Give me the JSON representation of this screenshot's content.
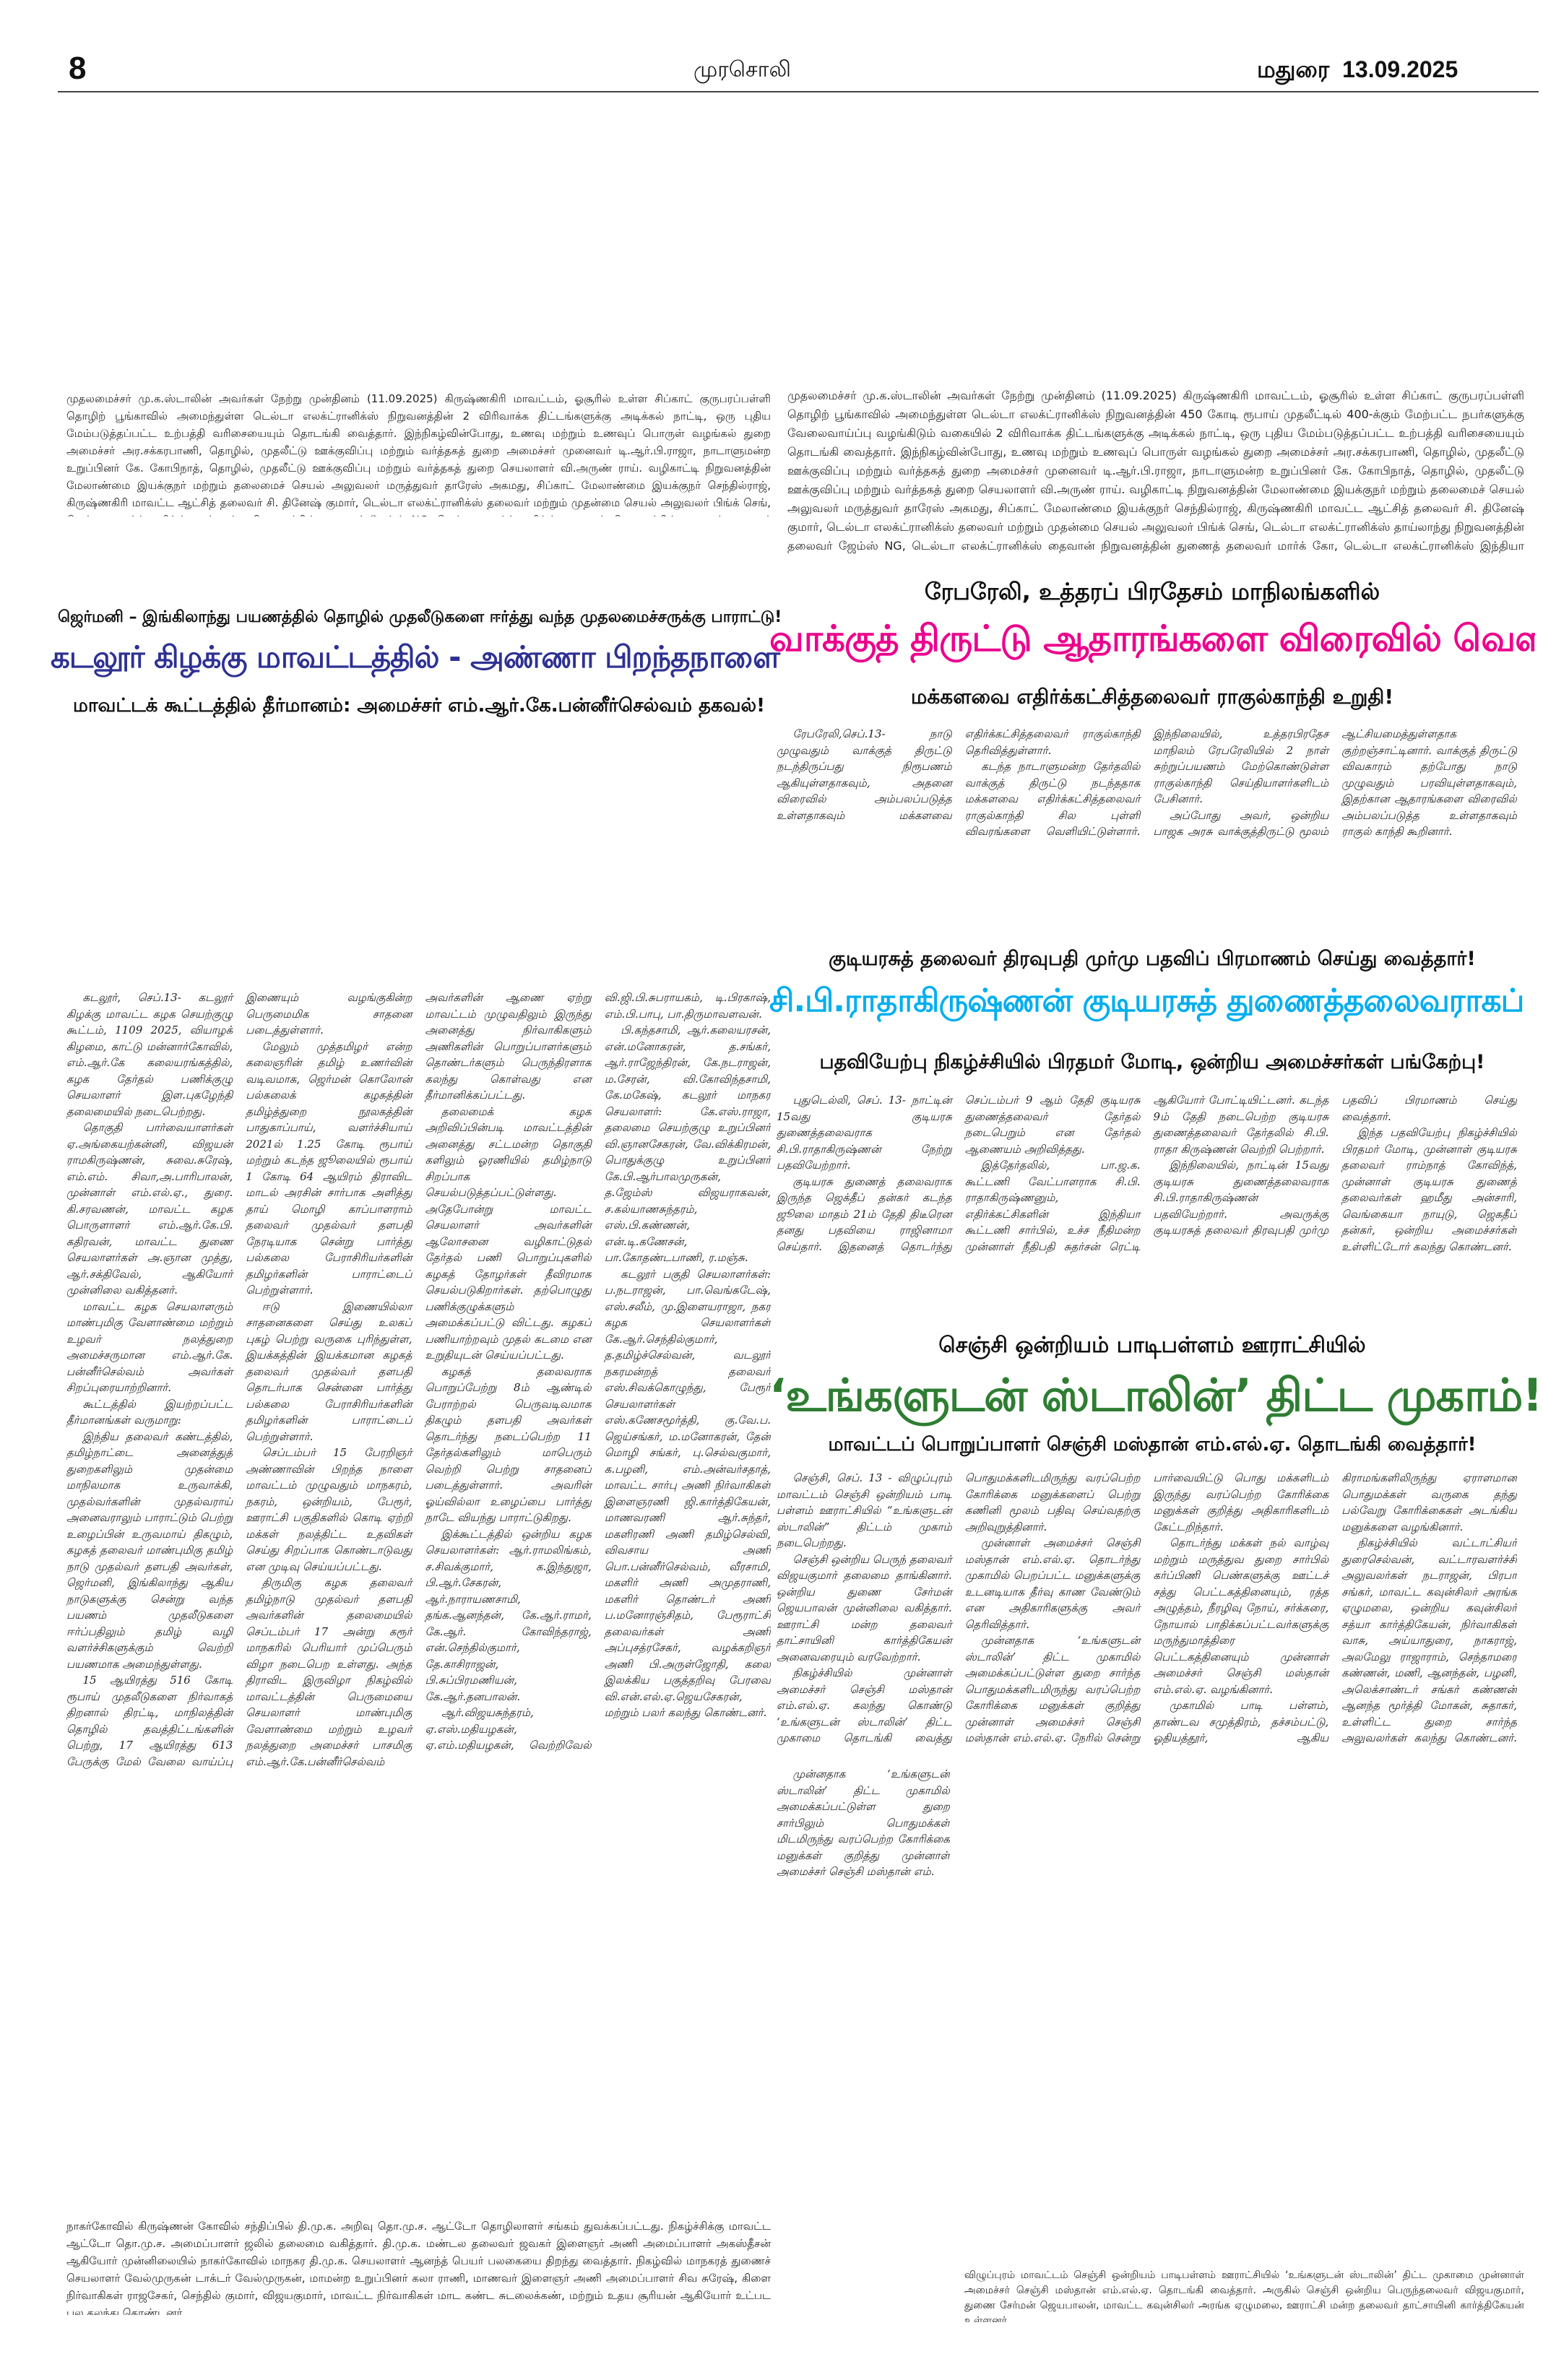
{
  "header": {
    "page_number": "8",
    "masthead": "முரசொலி",
    "edition": "மதுரை",
    "date": "13.09.2025"
  },
  "colors": {
    "left_headline": "#2e3192",
    "rahul_headline": "#ec008c",
    "vp_headline": "#00aeef",
    "senji_headline": "#2e7d32"
  },
  "left_top_caption": "முதலமைச்சர் மு.க.ஸ்டாலின் அவர்கள் நேற்று முன்தினம் (11.09.2025) கிருஷ்ணகிரி மாவட்டம், ஓசூரில் உள்ள சிப்காட் குருபரப்பள்ளி தொழிற் பூங்காவில் அமைந்துள்ள டெல்டா எலக்ட்ரானிக்ஸ் நிறுவனத்தின் 2 விரிவாக்க திட்டங்களுக்கு அடிக்கல் நாட்டி, ஒரு புதிய மேம்படுத்தப்பட்ட உற்பத்தி வரிசையையும் தொடங்கி வைத்தார். இந்நிகழ்வின்போது, உணவு மற்றும் உணவுப் பொருள் வழங்கல் துறை அமைச்சர் அர.சக்கரபாணி, தொழில், முதலீட்டு ஊக்குவிப்பு மற்றும் வர்த்தகத் துறை அமைச்சர் முனைவர் டி.ஆர்.பி.ராஜா, நாடாளுமன்ற உறுப்பினர் கே. கோபிநாத், தொழில், முதலீட்டு ஊக்குவிப்பு மற்றும் வர்த்தகத் துறை செயலாளர் வி.அருண் ராய். வழிகாட்டி நிறுவனத்தின் மேலாண்மை இயக்குநர் மற்றும் தலைமைச் செயல் அலுவலர் மருத்துவர் தாரேஸ் அகமது, சிப்காட் மேலாண்மை இயக்குநர் செந்தில்ராஜ், கிருஷ்ணகிரி மாவட்ட ஆட்சித் தலைவர் சி. தினேஷ் குமார், டெல்டா எலக்ட்ரானிக்ஸ் தலைவர் மற்றும் முதன்மை செயல் அலுவலர் பிங்க் செங், டெல்டா எலக்ட்ரானிக்ஸ் தாய்லாந்து நிறுவனத்தின் தலைவர் ஜேம்ஸ் NG, டெல்டா எலக்ட்ரானிக்ஸ் தைவான் நிறுவனத்தின் துணைத் தலைவர் மார்க் கோ, டெல்டா எலக்ட்ரானிக்ஸ் இந்தியா நிறுவனத்தின் தலைவர் பெஞ்ஜமின் லின் மற்றும் அரசு உயர் அலுவலர்கள் உடனிருந்தனர்.",
  "right_top_caption": "முதலமைச்சர் மு.க.ஸ்டாலின் அவர்கள் நேற்று முன்தினம் (11.09.2025) கிருஷ்ணகிரி மாவட்டம், ஓசூரில் உள்ள சிப்காட் குருபரப்பள்ளி தொழிற் பூங்காவில் அமைந்துள்ள டெல்டா எலக்ட்ரானிக்ஸ் நிறுவனத்தின் 450 கோடி ரூபாய் முதலீட்டில் 400-க்கும் மேற்பட்ட நபர்களுக்கு வேலைவாய்ப்பு வழங்கிடும் வகையில் 2 விரிவாக்க திட்டங்களுக்கு அடிக்கல் நாட்டி, ஒரு புதிய மேம்படுத்தப்பட்ட உற்பத்தி வரிசையையும் தொடங்கி வைத்தார். இந்நிகழ்வின்போது, உணவு மற்றும் உணவுப் பொருள் வழங்கல் துறை அமைச்சர் அர.சக்கரபாணி, தொழில், முதலீட்டு ஊக்குவிப்பு மற்றும் வர்த்தகத் துறை அமைச்சர் முனைவர் டி.ஆர்.பி.ராஜா, நாடாளுமன்ற உறுப்பினர் கே. கோபிநாத், தொழில், முதலீட்டு ஊக்குவிப்பு மற்றும் வர்த்தகத் துறை செயலாளர் வி.அருண் ராய். வழிகாட்டி நிறுவனத்தின் மேலாண்மை இயக்குநர் மற்றும் தலைமைச் செயல் அலுவலர் மருத்துவர் தாரேஸ் அகமது, சிப்காட் மேலாண்மை இயக்குநர் செந்தில்ராஜ், கிருஷ்ணகிரி மாவட்ட ஆட்சித் தலைவர் சி. தினேஷ் குமார், டெல்டா எலக்ட்ரானிக்ஸ் தலைவர் மற்றும் முதன்மை செயல் அலுவலர் பிங்க் செங், டெல்டா எலக்ட்ரானிக்ஸ் தாய்லாந்து நிறுவனத்தின் தலைவர் ஜேம்ஸ் NG, டெல்டா எலக்ட்ரானிக்ஸ் தைவான் நிறுவனத்தின் துணைத் தலைவர் மார்க் கோ, டெல்டா எலக்ட்ரானிக்ஸ் இந்தியா நிறுவனத்தின் தலைவர் பெஞ்ஜமின் லின் மற்றும் அரசு உயர் அலுவலர்கள் உடனிருந்தனர்.",
  "cuddalore": {
    "kicker": "ஜெர்மனி – இங்கிலாந்து பயணத்தில் தொழில் முதலீடுகளை ஈர்த்து வந்த முதலமைச்சருக்கு பாராட்டு!",
    "headline": "கடலூர் கிழக்கு மாவட்டத்தில் - அண்ணா பிறந்தநாளை சிறப்பாகக் கொண்டாடுவோம்!",
    "subhead": "மாவட்டக் கூட்டத்தில் தீர்மானம்: அமைச்சர் எம்.ஆர்.கே.பன்னீர்செல்வம் தகவல்!",
    "paragraphs": [
      "கடலூர், செப்.13- கடலூர் கிழக்கு மாவட்ட கழக செயற்குழு கூட்டம், 1109 2025, வியாழக் கிழமை, காட்டு மன்னார்கோவில், எம்.ஆர்.கே கலையரங்கத்தில், கழக தேர்தல் பணிக்குழு செயலாளர் இள.புகழேந்தி தலைமையில் நடைபெற்றது.",
      "தொகுதி பார்வையாளர்கள் ஏ.அங்கையற்கன்னி, விஜயன் ராமகிருஷ்ணன், சுவை.சுரேஷ், எம்.எம். சிவா,அ.பாரிபாலன், முன்னாள் எம்.எல்.ஏ., துரை. கி.சரவணன், மாவட்ட கழக பொருளாளர் எம்.ஆர்.கே.பி. கதிரவன், மாவட்ட துணை செயலாளர்கள் அ.ஞான முத்து, ஆர்.சக்திவேல், ஆகியோர் முன்னிலை வகித்தனர்.",
      "மாவட்ட கழக செயலாளரும் மாண்புமிகு வேளாண்மை மற்றும் உழவர் நலத்துறை அமைச்சருமான எம்.ஆர்.கே. பன்னீர்செல்வம் அவர்கள் சிறப்புரையாற்றினார்.",
      "கூட்டத்தில் இயற்றப்பட்ட தீர்மானங்கள் வருமாறு:",
      "இந்திய தலைவர் கண்டத்தில், தமிழ்நாட்டை அனைத்துத் துறைகளிலும் முதன்மை மாநிலமாக உருவாக்கி, முதல்வர்களின் முதல்வராய் அனைவராலும் பாராட்டும் பெற்று உழைப்பின் உருவமாய் திகழும், கழகத் தலைவர் மாண்புமிகு தமிழ் நாடு முதல்வர் தளபதி அவர்கள், ஜெர்மனி, இங்கிலாந்து ஆகிய நாடுகளுக்கு சென்று வந்த பயணம் முதலீடுகளை ஈர்ப்பதிலும் தமிழ் வழி வளர்ச்சிகளுக்கும் வெற்றி பயணமாக அமைந்துள்ளது.",
      "15 ஆயிரத்து 516 கோடி ரூபாய் முதலீடுகளை நிர்வாகத் திறனால் திரட்டி, மாநிலத்தின் தொழில் தவத்திட்டங்களின் பெற்று, 17 ஆயிரத்து 613 பேருக்கு மேல் வேலை வாய்ப்பு இணையும் வழங்குகின்ற பெருமைமிக சாதனை படைத்துள்ளார்.",
      "மேலும் முத்தமிழர் என்ற கலைஞரின் தமிழ் உணர்வின் வடிவமாக, ஜெர்மன் கொலோன் பல்கலைக் கழகத்தின் தமிழ்த்துறை நூலகத்தின் பாதுகாப்பாய், வளர்ச்சியாய் 2021ல் 1.25 கோடி ரூபாய் மற்றும் கடந்த ஜூலையில் ரூபாய் 1 கோடி 64 ஆயிரம் திராவிட மாடல் அரசின் சார்பாக அளித்து தாய் மொழி காப்பாளராம் தலைவர் முதல்வர் தளபதி நேரடியாக சென்று பார்த்து பல்கலை பேராசிரியர்களின் தமிழர்களின் பாராட்டைப் பெற்றுள்ளார்.",
      "ஈடு இணையில்லா சாதனைகளை செய்து உலகப் புகழ் பெற்று வருகை புரிந்துள்ள, இயக்கத்தின் இயக்கமான கழகத் தலைவர் முதல்வர் தளபதி தொடர்பாக சென்னை பார்த்து பல்கலை பேராசிரியர்களின் தமிழர்களின் பாராட்டைப் பெற்றுள்ளார்.",
      "செப்டம்பர் 15 பேரறிஞர் அண்ணாவின் பிறந்த நாளை மாவட்டம் முழுவதும் மாநகரம், நகரம், ஒன்றியம், பேரூர், ஊராட்சி பகுதிகளில் கொடி ஏற்றி மக்கள் நலத்திட்ட உதவிகள் செய்து சிறப்பாக கொண்டாடுவது என முடிவு செய்யப்பட்டது.",
      "திருமிகு கழக தலைவர் தமிழ்நாடு முதல்வர் தளபதி அவர்களின் தலைமையில் செப்டம்பர் 17 அன்று கரூர் மாநகரில் பெரியார் முப்பெரும் விழா நடைபெற உள்ளது. அந்த திராவிட இருவிழா நிகழ்வில் மாவட்டத்தின் பெருமையை செயலாளர் மாண்புமிகு வேளாண்மை மற்றும் உழவர் நலத்துறை அமைச்சர் பாசமிகு எம்.ஆர்.கே.பன்னீர்செல்வம் அவர்களின் ஆணை ஏற்று மாவட்டம் முழுவதிலும் இருந்து அனைத்து நிர்வாகிகளும் அணிகளின் பொறுப்பாளர்களும் தொண்டர்களும் பெருந்திரளாக கலந்து கொள்வது என தீர்மானிக்கப்பட்டது.",
      "தலைமைக் கழக அறிவிப்பின்படி மாவட்டத்தின் அனைத்து சட்டமன்ற தொகுதி களிலும் ஓரணியில் தமிழ்நாடு சிறப்பாக செயல்படுத்தப்பட்டுள்ளது. அதேபோன்று மாவட்ட செயலாளர் அவர்களின் ஆலோசனை வழிகாட்டுதல் தேர்தல் பணி பொறுப்புகளில் கழகத் தோழர்கள் தீவிரமாக செயல்படுகிறார்கள். தற்பொழுது பணிக்குழுக்களும் அமைக்கப்பட்டு விட்டது. கழகப் பணியாற்றவும் முதல் கடமை என உறுதியுடன் செய்யப்பட்டது.",
      "கழகத் தலைவராக பொறுப்பேற்று 8ம் ஆண்டில் பேராற்றல் பெருவடிவமாக திகழும் தளபதி அவர்கள் தொடர்ந்து நடைப்பெற்ற 11 தேர்தல்களிலும் மாபெரும் வெற்றி பெற்று சாதனைப் படைத்துள்ளார். அவரின் ஓய்வில்லா உழைப்பை பார்த்து நாடே வியந்து பாராட்டுகிறது.",
      "இக்கூட்டத்தில் ஒன்றிய கழக செயலாளர்கள்: ஆர்.ராமலிங்கம், ச.சிவக்குமார், க.இந்துஜா, பி.ஆர்.சேகரன், ஆர்.நாராயணசாமி, தங்க.ஆனந்தன், கே.ஆர்.ராமர், கே.ஆர். கோவிந்தராஜ், என்.செந்தில்குமார், தே.காசிராஜன், பி.சுப்பிரமணியன், கே.ஆர்.தனபாலன்.",
      "ஆர்.விஜயசுந்தரம், ஏ.எஸ்.மதியழகன், ஏ.எம்.மதியழகன், வெற்றிவேல் வி.ஜி.பி.சுபராயகம், டி.பிரகாஷ், எம்.பி.பாபு, பா.திருமாவளவன்.",
      "பி.கந்தசாமி, ஆர்.கலையரசன், என்.மனோகரன், த.சங்கர், ஆர்.ராஜேந்திரன், கே.நடராஜன், ம.சேரன், வி.கோவிந்தசாமி, கே.மகேஷ், கடலூர் மாநகர செயலாளர்: கே.எஸ்.ராஜா, தலைமை செயற்குழு உறுப்பினர் வி.ஞானசேகரன், வே.விக்கிரமன், பொதுக்குழு உறுப்பினர் கே.பி.ஆர்பாலமுருகன், த.ஜேம்ஸ் விஜயராகவன், ச.கல்யாணசுந்தரம், எஸ்.பி.கண்ணன், என்.டி.கணேசன், பா.கோதண்டபாணி, ர.மஞ்சு.",
      "கடலூர் பகுதி செயலாளர்கள்: ப.நடராஜன், பா.வெங்கடேஷ், எஸ்.சலீம், மு.இளையராஜா, நகர கழக செயலாளர்கள் கே.ஆர்.செந்தில்குமார், த.தமிழ்ச்செல்வன், வடலூர் நகரமன்றத் தலைவர் எஸ்.சிவக்கொழுந்து, பேரூர் செயலாளர்கள் எஸ்.கணேசமூர்த்தி, கு.வே.ப. ஜெய்சங்கர், ம.மனோகரன், தேன் மொழி சங்கர், பு.செல்வகுமார், க.பழனி, எம்.அன்வர்சதாத், மாவட்ட சார்பு அணி நிர்வாகிகள் இளைஞரணி ஜி.கார்த்திகேயன், மாணவரணி ஆர்.சுந்தர், மகளிரணி அணி தமிழ்செல்வி, விவசாய அணி பொ.பன்னீர்செல்வம், வீரசாமி, மகளிர் அணி அமுதராணி, மகளிர் தொண்டர் அணி ப.மனோரஞ்சிதம், பேரூராட்சி தலைவர்கள் அணி அப்புசத்ரசேகர், வழக்கறிஞர் அணி பி.அருள்ஜோதி, கலை இலக்கிய பகுத்தறிவு பேரவை வி.என்.எல்.ஏ.ஜெயசேகரன், மற்றும் பலர் கலந்து கொண்டனர்."
    ]
  },
  "left_bottom_caption": "நாகர்கோவில் கிருஷ்ணன் கோவில் சந்திப்பில் தி.மு.க. அறிவு தொ.மு.ச. ஆட்டோ தொழிலாளர் சங்கம் துவக்கப்பட்டது. நிகழ்ச்சிக்கு மாவட்ட ஆட்டோ தொ.மு.ச. அமைப்பாளர் ஜலில் தலைமை வகித்தார். தி.மு.க. மண்டல தலைவர் ஜவகர் இளைஞர் அணி அமைப்பாளர் அகஸ்தீசன் ஆகியோர் முன்னிலையில் நாகர்கோவில் மாநகர தி.மு.க. செயலாளர் ஆனந்த் பெயர் பலகையை திறந்து வைத்தார். நிகழ்வில் மாநகரத் துணைச் செயலாளர் வேல்முருகன் டாக்டர் வேல்முருகன், மாமன்ற உறுப்பினர் கலா ராணி, மாணவர் இளைஞர் அணி அமைப்பாளர் சிவ சுரேஷ், கிளை நிர்வாகிகள் ராஜசேகர், செந்தில் குமார், விஜயகுமார், மாவட்ட நிர்வாகிகள் மாட கண்ட சுடலைக்கண், மற்றும் உதய சூரியன் ஆகியோர் உட்பட பல கலந்து கொண்டனர்.",
  "rahul": {
    "kicker": "ரேபரேலி, உத்தரப் பிரதேசம் மாநிலங்களில்",
    "headline": "வாக்குத் திருட்டு ஆதாரங்களை விரைவில் வெளியிடுவோம்!",
    "subhead": "மக்களவை எதிர்க்கட்சித்தலைவர் ராகுல்காந்தி உறுதி!",
    "paragraphs": [
      "ரேபரேலி,செப்.13- நாடு முழுவதும் வாக்குத் திருட்டு நடந்திருப்பது நிரூபணம் ஆகியுள்ளதாகவும், அதனை விரைவில் அம்பலப்படுத்த உள்ளதாகவும் மக்களவை எதிர்க்கட்சித்தலைவர் ராகுல்காந்தி தெரிவித்துள்ளார்.",
      "கடந்த நாடாளுமன்ற தேர்தலில் வாக்குத் திருட்டு நடந்ததாக மக்களவை எதிர்க்கட்சித்தலைவர் ராகுல்காந்தி சில புள்ளி விவரங்களை வெளியிட்டுள்ளார். இந்நிலையில், உத்தரபிரதேச மாநிலம் ரேபரேலியில் 2 நாள் சுற்றுப்பயணம் மேற்கொண்டுள்ள ராகுல்காந்தி செய்தியாளர்களிடம் பேசினார்.",
      "அப்போது அவர், ஒன்றிய பாஜக அரசு வாக்குத்திருட்டு மூலம் ஆட்சியமைத்துள்ளதாக குற்றஞ்சாட்டினார். வாக்குத் திருட்டு விவகாரம் தற்போது நாடு முழுவதும் பரவியுள்ளதாகவும், இதற்கான ஆதாரங்களை விரைவில் அம்பலப்படுத்த உள்ளதாகவும் ராகுல் காந்தி கூறினார்."
    ]
  },
  "vp": {
    "kicker": "குடியரசுத் தலைவர் திரவுபதி முர்மு பதவிப் பிரமாணம் செய்து வைத்தார்!",
    "headline": "சி.பி.ராதாகிருஷ்ணன் குடியரசுத் துணைத்தலைவராகப் பதவியேற்றார்!",
    "subhead": "பதவியேற்பு நிகழ்ச்சியில் பிரதமர் மோடி, ஒன்றிய அமைச்சர்கள் பங்கேற்பு!",
    "paragraphs": [
      "புதுடெல்லி, செப். 13- நாட்டின் 15வது குடியரசு துணைத்தலைவராக சி.பி.ராதாகிருஷ்ணன் நேற்று பதவியேற்றார்.",
      "குடியரசு துணைத் தலைவராக இருந்த ஜெக்தீப் தன்கர் கடந்த ஜூலை மாதம் 21ம் தேதி திடீரென தனது பதவியை ராஜினாமா செய்தார். இதனைத் தொடர்ந்து செப்டம்பர் 9 ஆம் தேதி குடியரசு துணைத்தலைவர் தேர்தல் நடைபெறும் என தேர்தல் ஆணையம் அறிவித்தது.",
      "இத்தேர்தலில், பா.ஜ.க. கூட்டணி வேட்பாளராக சி.பி. ராதாகிருஷ்ணனும், எதிர்க்கட்சிகளின் இந்தியா கூட்டணி சார்பில், உச்ச நீதிமன்ற முன்னாள் நீதிபதி சுதர்சன் ரெட்டி ஆகியோர் போட்டியிட்டனர். கடந்த 9ம் தேதி நடைபெற்ற குடியரசு துணைத்தலைவர் தேர்தலில் சி.பி. ராதா கிருஷ்ணன் வெற்றி பெற்றார்.",
      "இந்நிலையில், நாட்டின் 15வது குடியரசு துணைத்தலைவராக சி.பி.ராதாகிருஷ்ணன் பதவியேற்றார். அவருக்கு குடியரசுத் தலைவர் திரவுபதி முர்மு பதவிப் பிரமாணம் செய்து வைத்தார்.",
      "இந்த பதவியேற்பு நிகழ்ச்சியில் பிரதமர் மோடி, முன்னாள் குடியரசு தலைவர் ராம்நாத் கோவிந்த், முன்னாள் குடியரசு துணைத் தலைவர்கள் ஹமீது அன்சாரி, வெங்கையா நாயுடு, ஜெகதீப் தன்கர், ஒன்றிய அமைச்சர்கள் உள்ளிட்டோர் கலந்து கொண்டனர்."
    ]
  },
  "senji": {
    "kicker": "செஞ்சி ஒன்றியம் பாடிபள்ளம் ஊராட்சியில்",
    "headline": "‘உங்களுடன் ஸ்டாலின்’ திட்ட முகாம்!",
    "subhead": "மாவட்டப் பொறுப்பாளர் செஞ்சி மஸ்தான் எம்.எல்.ஏ. தொடங்கி வைத்தார்!",
    "paragraphs": [
      "செஞ்சி, செப். 13 - விழுப்புரம் மாவட்டம் செஞ்சி ஒன்றியம் பாடி பள்ளம் ஊராட்சியில் “உங்களுடன் ஸ்டாலின்” திட்டம் முகாம் நடைபெற்றது.",
      "செஞ்சி ஒன்றிய பெருந் தலைவர் விஜயகுமார் தலைமை தாங்கினார். ஒன்றிய துணை சேர்மன் ஜெயபாலன் முன்னிலை வகித்தார். ஊராட்சி மன்ற தலைவர் தாட்சாயினி கார்த்திகேயன் அனைவரையும் வரவேற்றார்.",
      "நிகழ்ச்சியில் முன்னாள் அமைச்சர் செஞ்சி மஸ்தான் எம்.எல்.ஏ. கலந்து கொண்டு ‘உங்களுடன் ஸ்டாலின்’ திட்ட முகாமை தொடங்கி வைத்து பொதுமக்களிடமிருந்து வரப்பெற்ற கோரிக்கை மனுக்களைப் பெற்று கணினி மூலம் பதிவு செய்வதற்கு அறிவுறுத்தினார்.",
      "முன்னாள் அமைச்சர் செஞ்சி மஸ்தான் எம்.எல்.ஏ. தொடர்ந்து முகாமில் பெறப்பட்ட மனுக்களுக்கு உடனடியாக தீர்வு காண வேண்டும் என அதிகாரிகளுக்கு அவர் தெரிவித்தார்.",
      "முன்னதாக ‘உங்களுடன் ஸ்டாலின்’ திட்ட முகாமில் அமைக்கப்பட்டுள்ள துறை சார்ந்த பொதுமக்களிடமிருந்து வரப்பெற்ற கோரிக்கை மனுக்கள் குறித்து முன்னாள் அமைச்சர் செஞ்சி மஸ்தான் எம்.எல்.ஏ. நேரில் சென்று பார்வையிட்டு பொது மக்களிடம் இருந்து வரப்பெற்ற கோரிக்கை மனுக்கள் குறித்து அதிகாரிகளிடம் கேட்டறிந்தார்.",
      "தொடர்ந்து மக்கள் நல் வாழ்வு மற்றும் மருத்துவ துறை சார்பில் கர்ப்பிணி பெண்களுக்கு ஊட்டச் சத்து பெட்டகத்தினையும், ரத்த அழுத்தம், நீரழிவு நோய், சர்க்கரை, நோயால் பாதிக்கப்பட்டவர்களுக்கு மருந்துமாத்திரை பெட்டகத்தினையும் முன்னாள் அமைச்சர் செஞ்சி மஸ்தான் எம்.எல்.ஏ. வழங்கினார்.",
      "முகாமில் பாடி பள்ளம், தாண்டவ சமுத்திரம், தச்சம்பட்டு, ஓதியத்தூர், ஆகிய கிராமங்களிலிருந்து ஏராளமான பொதுமக்கள் வருகை தந்து பல்வேறு கோரிக்கைகள் அடங்கிய மனுக்களை வழங்கினார்.",
      "நிகழ்ச்சியில் வட்டாட்சியர் துரைசெல்வன், வட்டாரவளர்ச்சி அலுவலர்கள் நடராஜன், பிரபா சங்கர், மாவட்ட கவுன்சிலர் அரங்க ஏழுமலை, ஒன்றிய கவுன்சிலர் சத்யா கார்த்திகேயன், நிர்வாகிகள் வாசு, அய்யாதுரை, நாகராஜ், அலமேலு ராஜாராம், செந்தாமரை கண்ணன், மணி, ஆனந்தன், பழனி, அலெக்சாண்டர் சங்கர் கண்ணன் ஆனந்த மூர்த்தி மோகன், சுதாகர், உள்ளிட்ட துறை சார்ந்த அலுவலர்கள் கலந்து கொண்டனர். துணை வட்டார வளர்ச்சி அலுவலர் அபிராமி அனைவருக்கும் நன்றி கூறினார்."
    ],
    "continuation": [
      "முன்னதாக ‘உங்களுடன் ஸ்டாலின்’ திட்ட முகாமில் அமைக்கப்பட்டுள்ள துறை சார்பிலும் பொதுமக்கள் மிடமிருந்து வரப்பெற்ற கோரிக்கை மனுக்கள் குறித்து முன்னாள் அமைச்சர் செஞ்சி மஸ்தான் எம்."
    ]
  },
  "right_bottom_caption": "விழுப்புரம் மாவட்டம் செஞ்சி ஒன்றியம் பாடிபள்ளம் ஊராட்சியில் ‘உங்களுடன் ஸ்டாலின்’ திட்ட முகாமை முன்னாள் அமைச்சர் செஞ்சி மஸ்தான் எம்.எல்.ஏ. தொடங்கி வைத்தார். அருகில் செஞ்சி ஒன்றிய பெருந்தலைவர் விஜயகுமார், துணை சேர்மன் ஜெயபாலன், மாவட்ட கவுன்சிலர் அரங்க ஏழுமலை, ஊராட்சி மன்ற தலைவர் தாட்சாயினி கார்த்திகேயன் உள்ளனர்."
}
